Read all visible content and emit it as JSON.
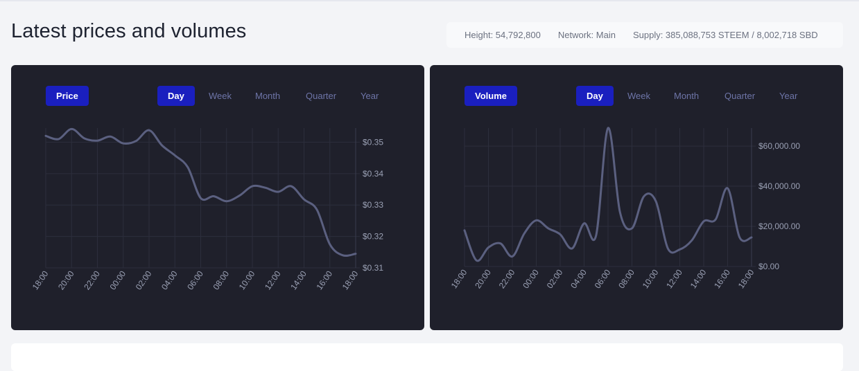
{
  "page": {
    "title": "Latest prices and volumes"
  },
  "info": {
    "height": "Height: 54,792,800",
    "network": "Network: Main",
    "supply": "Supply: 385,088,753 STEEM / 8,002,718 SBD"
  },
  "colors": {
    "accent": "#1a1fbf",
    "panel": "#1f202b",
    "line": "#5b6080",
    "tab": "#6e75a8"
  },
  "tabs": [
    "Day",
    "Week",
    "Month",
    "Quarter",
    "Year"
  ],
  "price_panel": {
    "chip": "Price",
    "active_tab": "Day"
  },
  "volume_panel": {
    "chip": "Volume",
    "active_tab": "Day"
  },
  "chart_data": [
    {
      "type": "line",
      "name": "price",
      "x": [
        "18:00",
        "19:00",
        "20:00",
        "21:00",
        "22:00",
        "23:00",
        "00:00",
        "01:00",
        "02:00",
        "03:00",
        "04:00",
        "05:00",
        "06:00",
        "07:00",
        "08:00",
        "09:00",
        "10:00",
        "11:00",
        "12:00",
        "13:00",
        "14:00",
        "15:00",
        "16:00",
        "17:00",
        "18:00"
      ],
      "y": [
        0.352,
        0.351,
        0.3542,
        0.3512,
        0.3505,
        0.3518,
        0.3496,
        0.3504,
        0.3538,
        0.349,
        0.3458,
        0.342,
        0.3322,
        0.3328,
        0.3312,
        0.333,
        0.336,
        0.3355,
        0.3342,
        0.336,
        0.3318,
        0.3285,
        0.3175,
        0.314,
        0.3145
      ],
      "tick_labels": [
        "18:00",
        "20:00",
        "22:00",
        "00:00",
        "02:00",
        "04:00",
        "06:00",
        "08:00",
        "10:00",
        "12:00",
        "14:00",
        "16:00",
        "18:00"
      ],
      "y_ticks": [
        0.31,
        0.32,
        0.33,
        0.34,
        0.35
      ],
      "y_tick_labels": [
        "$0.31",
        "$0.32",
        "$0.33",
        "$0.34",
        "$0.35"
      ],
      "ylim": [
        0.31,
        0.3545
      ],
      "grid": true,
      "title": "",
      "xlabel": "",
      "ylabel": ""
    },
    {
      "type": "line",
      "name": "volume",
      "x": [
        "18:00",
        "19:00",
        "20:00",
        "21:00",
        "22:00",
        "23:00",
        "00:00",
        "01:00",
        "02:00",
        "03:00",
        "04:00",
        "05:00",
        "06:00",
        "07:00",
        "08:00",
        "09:00",
        "10:00",
        "11:00",
        "12:00",
        "13:00",
        "14:00",
        "15:00",
        "16:00",
        "17:00",
        "18:00"
      ],
      "y": [
        18000,
        3000,
        9500,
        11500,
        5000,
        16500,
        23000,
        19000,
        16000,
        9000,
        21500,
        15500,
        69000,
        27000,
        19000,
        35000,
        32500,
        9000,
        8500,
        13000,
        22500,
        23500,
        39000,
        14500,
        14500
      ],
      "tick_labels": [
        "18:00",
        "20:00",
        "22:00",
        "00:00",
        "02:00",
        "04:00",
        "06:00",
        "08:00",
        "10:00",
        "12:00",
        "14:00",
        "16:00",
        "18:00"
      ],
      "y_ticks": [
        0,
        20000,
        40000,
        60000
      ],
      "y_tick_labels": [
        "$0.00",
        "$20,000.00",
        "$40,000.00",
        "$60,000.00"
      ],
      "ylim": [
        0,
        69000
      ],
      "grid": true,
      "title": "",
      "xlabel": "",
      "ylabel": ""
    }
  ]
}
